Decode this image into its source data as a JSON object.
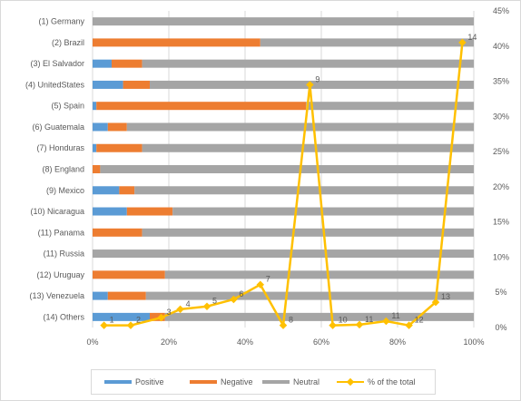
{
  "colors": {
    "positive": "#5b9bd5",
    "negative": "#ed7d31",
    "neutral": "#a5a5a5",
    "total_line": "#ffc000",
    "grid": "#d9d9d9",
    "axis_text": "#595959"
  },
  "chart_data": {
    "type": "bar",
    "orientation": "horizontal",
    "stacked": true,
    "combined_with": "line",
    "title": "",
    "categories": [
      "(1) Germany",
      "(2) Brazil",
      "(3) El Salvador",
      "(4) UnitedStates",
      "(5) Spain",
      "(6) Guatemala",
      "(7) Honduras",
      "(8) England",
      "(9) Mexico",
      "(10) Nicaragua",
      "(11) Panama",
      "(11) Russia",
      "(12) Uruguay",
      "(13) Venezuela",
      "(14) Others"
    ],
    "series": [
      {
        "name": "Positive",
        "values": [
          0,
          0,
          5,
          8,
          1,
          4,
          1,
          0,
          7,
          9,
          0,
          0,
          0,
          4,
          15
        ]
      },
      {
        "name": "Negative",
        "values": [
          0,
          44,
          8,
          7,
          55,
          5,
          12,
          2,
          4,
          12,
          13,
          0,
          19,
          10,
          4
        ]
      },
      {
        "name": "Neutral",
        "values": [
          100,
          56,
          87,
          85,
          44,
          91,
          87,
          98,
          89,
          79,
          87,
          100,
          81,
          86,
          81
        ]
      }
    ],
    "x_axis": {
      "ticks": [
        "0%",
        "20%",
        "40%",
        "60%",
        "80%",
        "100%"
      ],
      "range": [
        0,
        100
      ]
    },
    "secondary_axis": {
      "ticks": [
        "0%",
        "5%",
        "10%",
        "15%",
        "20%",
        "25%",
        "30%",
        "35%",
        "40%",
        "45%"
      ],
      "range": [
        0,
        45
      ]
    },
    "line_series": {
      "name": "% of the total",
      "points": [
        {
          "label": "1",
          "x": 3,
          "y": 0.3
        },
        {
          "label": "2",
          "x": 10,
          "y": 0.3
        },
        {
          "label": "3",
          "x": 18,
          "y": 1.4
        },
        {
          "label": "4",
          "x": 23,
          "y": 2.6
        },
        {
          "label": "5",
          "x": 30,
          "y": 3.0
        },
        {
          "label": "6",
          "x": 37,
          "y": 4.0
        },
        {
          "label": "7",
          "x": 44,
          "y": 6.1
        },
        {
          "label": "8",
          "x": 50,
          "y": 0.3
        },
        {
          "label": "9",
          "x": 57,
          "y": 34.5
        },
        {
          "label": "10",
          "x": 63,
          "y": 0.3
        },
        {
          "label": "11",
          "x": 70,
          "y": 0.4
        },
        {
          "label": "11",
          "x": 77,
          "y": 0.9
        },
        {
          "label": "12",
          "x": 83,
          "y": 0.3
        },
        {
          "label": "13",
          "x": 90,
          "y": 3.6
        },
        {
          "label": "14",
          "x": 97,
          "y": 40.5
        }
      ]
    },
    "legend": {
      "position": "bottom"
    }
  },
  "legend": {
    "positive": "Positive",
    "negative": "Negative",
    "neutral": "Neutral",
    "total": "% of the total"
  }
}
